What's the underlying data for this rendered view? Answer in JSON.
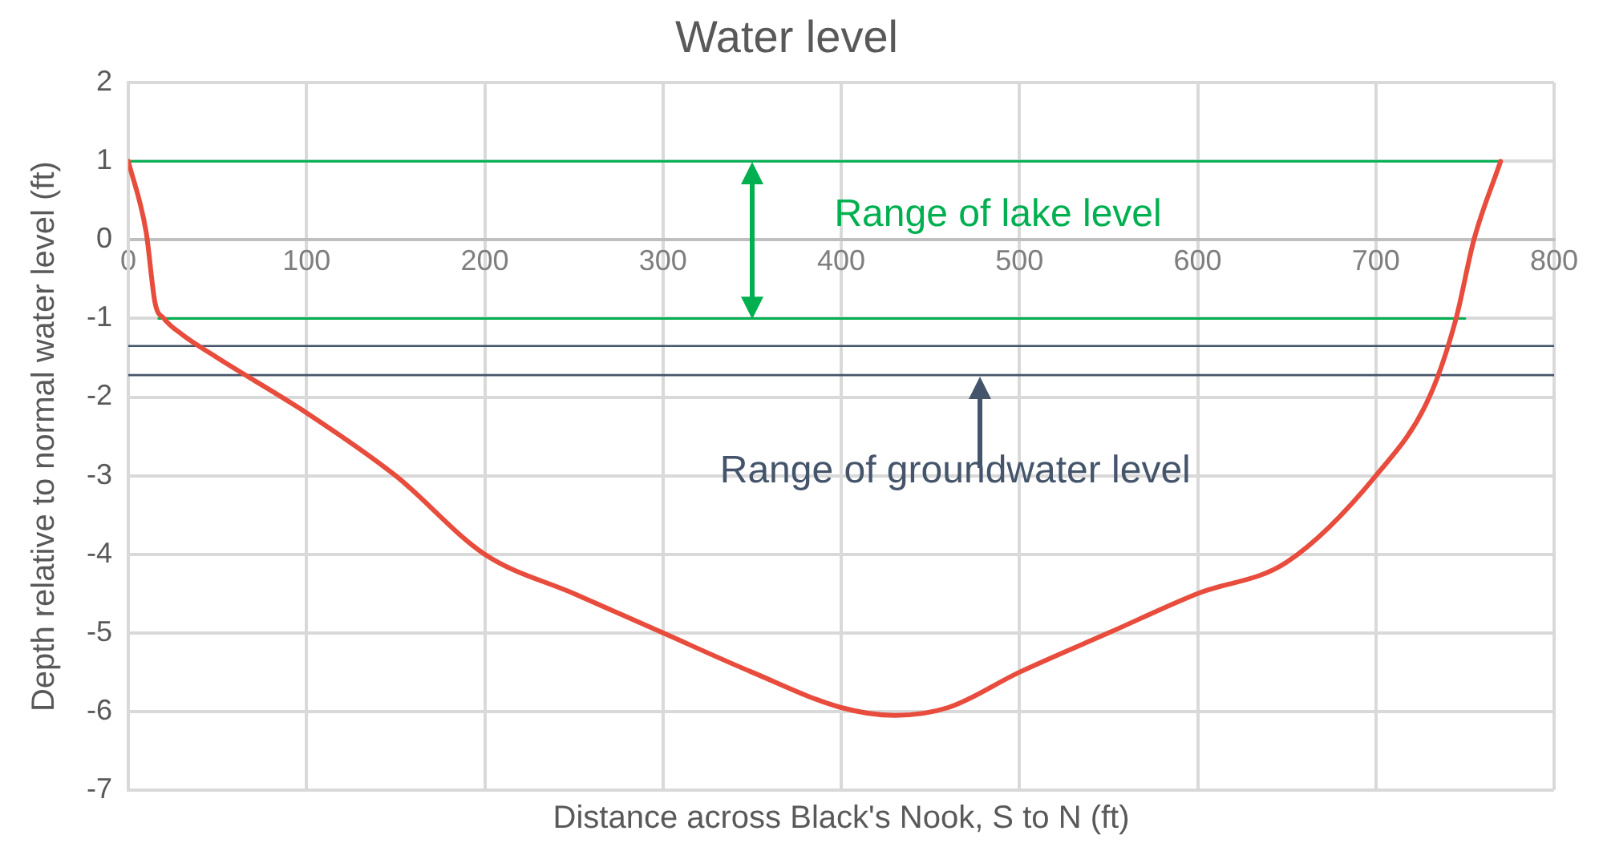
{
  "chart_data": {
    "type": "line",
    "title": "Water level",
    "xlabel": "Distance across Black's Nook, S to N (ft)",
    "ylabel": "Depth relative to normal water level (ft)",
    "x": [
      0,
      10,
      15,
      20,
      30,
      50,
      100,
      150,
      200,
      250,
      300,
      350,
      400,
      430,
      460,
      500,
      550,
      600,
      650,
      700,
      730,
      745,
      755,
      770
    ],
    "series": [
      {
        "color": "#e84c3d",
        "values": [
          1,
          0.1,
          -0.8,
          -1.0,
          -1.2,
          -1.5,
          -2.2,
          -3.0,
          -4.0,
          -4.5,
          -5.0,
          -5.5,
          -5.95,
          -6.05,
          -5.95,
          -5.5,
          -5.0,
          -4.5,
          -4.1,
          -3.0,
          -2.0,
          -1.0,
          0,
          1
        ]
      },
      {
        "type": "line",
        "color": "#00b050",
        "x": [
          0,
          770
        ],
        "values": [
          1,
          1
        ]
      },
      {
        "type": "line",
        "color": "#00b050",
        "x": [
          17,
          750
        ],
        "values": [
          -1,
          -1
        ]
      }
    ],
    "xlim": [
      0,
      800
    ],
    "xticks": [
      0,
      100,
      200,
      300,
      400,
      500,
      600,
      700,
      800
    ],
    "ylim": [
      -7,
      2
    ],
    "yticks": [
      -7,
      -6,
      -5,
      -4,
      -3,
      -2,
      -1,
      0,
      1,
      2
    ],
    "ref_lines": [
      {
        "axis": "y",
        "value": -1.35,
        "color": "#44546a"
      },
      {
        "axis": "y",
        "value": -1.72,
        "color": "#44546a"
      }
    ],
    "annotations": [
      "Range of lake level",
      "Range of groundwater level"
    ],
    "grid": true,
    "legend": false,
    "marker": "none",
    "line_style": "solid"
  }
}
